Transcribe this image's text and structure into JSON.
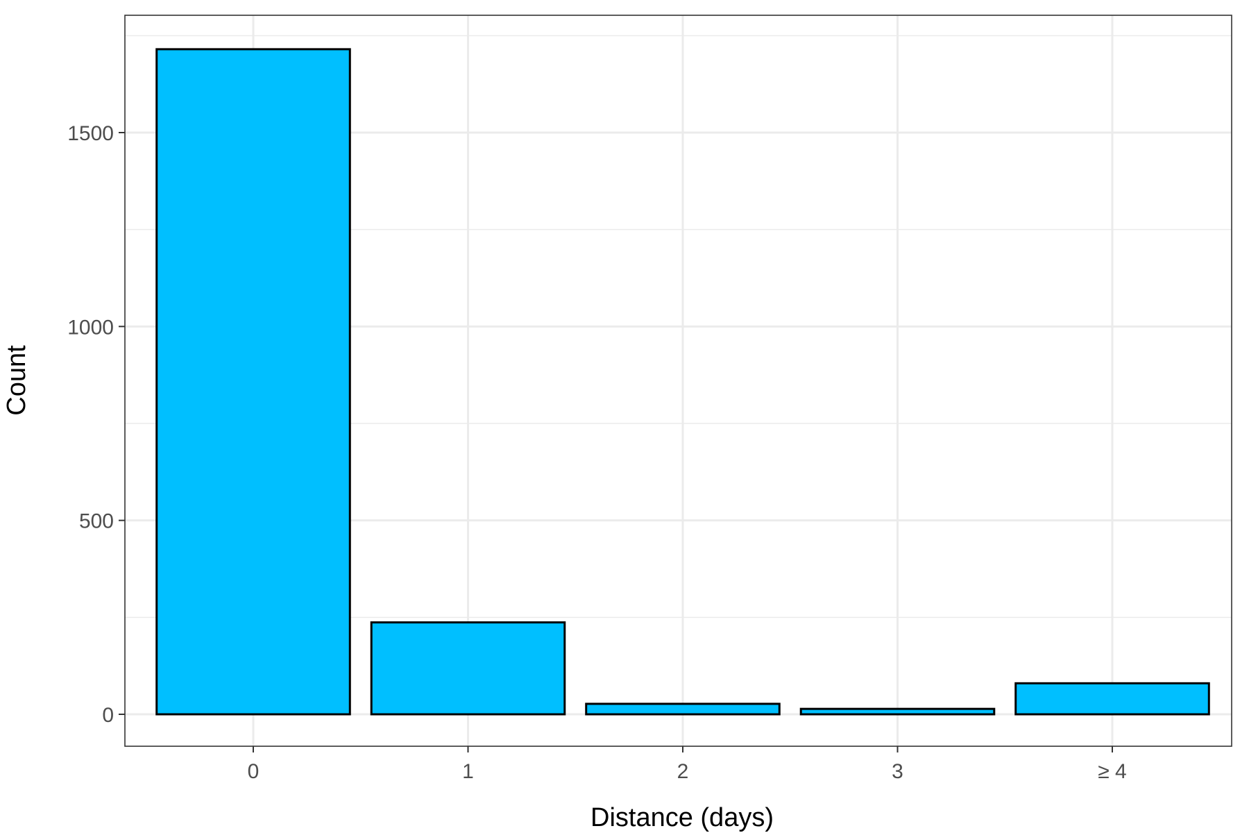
{
  "chart_data": {
    "type": "bar",
    "title": "",
    "xlabel": "Distance (days)",
    "ylabel": "Count",
    "categories": [
      "0",
      "1",
      "2",
      "3",
      "≥ 4"
    ],
    "values": [
      1715,
      237,
      27,
      14,
      80
    ],
    "ylim": [
      -85,
      1800
    ],
    "yticks": [
      0,
      500,
      1000,
      1500
    ],
    "y_minor_ticks": [
      250,
      750,
      1250,
      1750
    ],
    "grid": true,
    "legend": "none",
    "colors": {
      "bar_fill": "#00BFFF",
      "bar_stroke": "#000000",
      "grid": "#EBEBEB",
      "panel_border": "#333333"
    }
  }
}
